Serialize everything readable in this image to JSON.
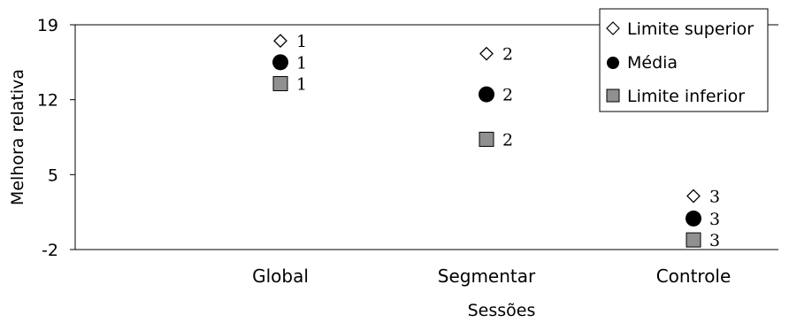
{
  "chart_data": {
    "type": "scatter",
    "xlabel": "Sessões",
    "ylabel": "Melhora relativa",
    "ylim": [
      -2,
      19
    ],
    "yticks": [
      "19",
      "12",
      "5",
      "-2"
    ],
    "grid": false,
    "legend_position": "top-right",
    "categories": [
      "Global",
      "Segmentar",
      "Controle"
    ],
    "series": [
      {
        "name": "Limite superior",
        "marker": "diamond",
        "color": "#ffffff",
        "values": [
          17.5,
          16.3,
          3.0
        ],
        "labels": [
          "1",
          "2",
          "3"
        ]
      },
      {
        "name": "Média",
        "marker": "circle",
        "color": "#000000",
        "values": [
          15.5,
          12.5,
          0.9
        ],
        "labels": [
          "1",
          "2",
          "3"
        ]
      },
      {
        "name": "Limite inferior",
        "marker": "square",
        "color": "#909090",
        "values": [
          13.5,
          8.3,
          -1.1
        ],
        "labels": [
          "1",
          "2",
          "3"
        ]
      }
    ]
  }
}
